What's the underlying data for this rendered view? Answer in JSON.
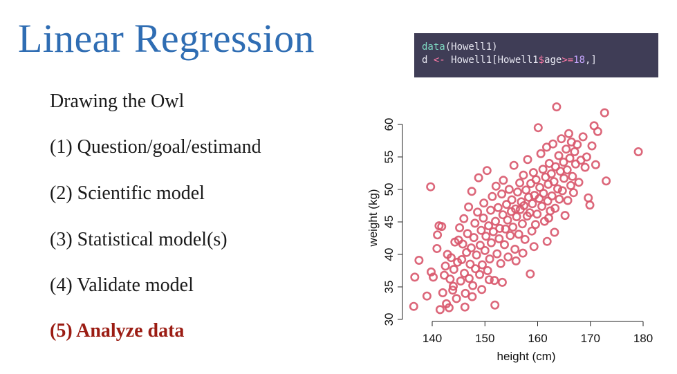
{
  "slide": {
    "title": "Linear Regression",
    "code_lines": [
      {
        "fn": "data",
        "rest": "(Howell1)"
      },
      {
        "prefix": "d ",
        "op": "<-",
        "mid": " Howell1[Howell1",
        "op2": "$",
        "mid2": "age",
        "op3": ">=",
        "num": "18",
        "tail": ",]"
      }
    ],
    "steps": [
      {
        "label": "Drawing the Owl",
        "active": false
      },
      {
        "label": "(1) Question/goal/estimand",
        "active": false
      },
      {
        "label": "(2) Scientific model",
        "active": false
      },
      {
        "label": "(3) Statistical model(s)",
        "active": false
      },
      {
        "label": "(4) Validate model",
        "active": false
      },
      {
        "label": "(5) Analyze data",
        "active": true
      }
    ]
  },
  "colors": {
    "title": "#2f6db3",
    "point": "#d8566c",
    "active_step": "#9b1c13",
    "code_bg": "#3f3d56"
  },
  "chart_data": {
    "type": "scatter",
    "title": "",
    "xlabel": "height (cm)",
    "ylabel": "weight (kg)",
    "xlim": [
      135,
      181
    ],
    "ylim": [
      29.5,
      63
    ],
    "xticks": [
      140,
      150,
      160,
      170,
      180
    ],
    "yticks": [
      30,
      35,
      40,
      45,
      50,
      55,
      60
    ],
    "grid": false,
    "legend": "none",
    "series": [
      {
        "marker": "open-circle",
        "color": "#d8566c",
        "points": [
          [
            139.7,
            50.4
          ],
          [
            136.5,
            32.0
          ],
          [
            136.7,
            36.5
          ],
          [
            137.5,
            39.1
          ],
          [
            139.0,
            33.6
          ],
          [
            139.8,
            37.3
          ],
          [
            140.2,
            36.5
          ],
          [
            140.9,
            40.9
          ],
          [
            141.0,
            43.0
          ],
          [
            141.3,
            44.4
          ],
          [
            141.5,
            31.5
          ],
          [
            141.8,
            44.3
          ],
          [
            142.0,
            34.1
          ],
          [
            142.3,
            36.8
          ],
          [
            142.5,
            38.2
          ],
          [
            142.7,
            32.4
          ],
          [
            142.9,
            40.0
          ],
          [
            143.2,
            31.8
          ],
          [
            143.4,
            36.2
          ],
          [
            143.6,
            39.5
          ],
          [
            143.9,
            34.5
          ],
          [
            144.1,
            37.7
          ],
          [
            144.3,
            41.9
          ],
          [
            144.6,
            33.2
          ],
          [
            144.8,
            38.8
          ],
          [
            145.0,
            42.2
          ],
          [
            145.2,
            44.1
          ],
          [
            145.4,
            35.9
          ],
          [
            145.6,
            39.2
          ],
          [
            145.8,
            41.6
          ],
          [
            146.0,
            45.5
          ],
          [
            146.1,
            37.1
          ],
          [
            146.3,
            34.0
          ],
          [
            146.5,
            40.3
          ],
          [
            146.7,
            43.2
          ],
          [
            146.9,
            47.3
          ],
          [
            147.0,
            36.3
          ],
          [
            147.2,
            38.5
          ],
          [
            147.4,
            41.0
          ],
          [
            147.5,
            49.7
          ],
          [
            147.7,
            35.2
          ],
          [
            147.9,
            42.6
          ],
          [
            148.1,
            44.8
          ],
          [
            148.2,
            37.8
          ],
          [
            148.4,
            39.9
          ],
          [
            148.6,
            46.5
          ],
          [
            148.8,
            51.8
          ],
          [
            149.0,
            36.9
          ],
          [
            149.1,
            41.4
          ],
          [
            149.3,
            43.7
          ],
          [
            149.5,
            38.4
          ],
          [
            149.7,
            45.6
          ],
          [
            149.8,
            47.9
          ],
          [
            150.0,
            40.6
          ],
          [
            150.2,
            42.8
          ],
          [
            150.4,
            52.9
          ],
          [
            150.5,
            37.5
          ],
          [
            150.7,
            44.4
          ],
          [
            150.9,
            39.3
          ],
          [
            151.1,
            46.8
          ],
          [
            151.2,
            41.8
          ],
          [
            151.4,
            48.9
          ],
          [
            151.6,
            43.5
          ],
          [
            151.8,
            36.0
          ],
          [
            152.0,
            45.1
          ],
          [
            152.1,
            50.5
          ],
          [
            152.3,
            40.1
          ],
          [
            152.5,
            47.2
          ],
          [
            152.7,
            42.4
          ],
          [
            152.8,
            44.0
          ],
          [
            153.0,
            38.6
          ],
          [
            153.2,
            49.3
          ],
          [
            153.4,
            46.1
          ],
          [
            153.5,
            51.4
          ],
          [
            153.7,
            41.5
          ],
          [
            153.9,
            43.9
          ],
          [
            154.1,
            47.7
          ],
          [
            154.3,
            45.3
          ],
          [
            154.4,
            39.6
          ],
          [
            154.6,
            50.0
          ],
          [
            154.8,
            42.9
          ],
          [
            155.0,
            46.6
          ],
          [
            155.1,
            48.4
          ],
          [
            155.3,
            44.2
          ],
          [
            155.5,
            53.7
          ],
          [
            155.7,
            40.8
          ],
          [
            155.8,
            47.0
          ],
          [
            156.0,
            45.8
          ],
          [
            156.2,
            49.6
          ],
          [
            156.4,
            43.1
          ],
          [
            156.6,
            51.0
          ],
          [
            156.7,
            46.9
          ],
          [
            156.9,
            48.1
          ],
          [
            157.1,
            44.7
          ],
          [
            157.3,
            52.2
          ],
          [
            157.4,
            47.5
          ],
          [
            157.6,
            42.3
          ],
          [
            157.8,
            49.9
          ],
          [
            158.0,
            45.9
          ],
          [
            158.1,
            54.6
          ],
          [
            158.3,
            48.8
          ],
          [
            158.5,
            46.4
          ],
          [
            158.7,
            50.9
          ],
          [
            158.9,
            43.6
          ],
          [
            159.0,
            47.8
          ],
          [
            159.2,
            52.6
          ],
          [
            159.4,
            49.1
          ],
          [
            159.6,
            44.6
          ],
          [
            159.7,
            51.5
          ],
          [
            159.9,
            46.2
          ],
          [
            160.1,
            59.5
          ],
          [
            160.3,
            48.6
          ],
          [
            160.4,
            50.3
          ],
          [
            160.6,
            55.5
          ],
          [
            160.8,
            47.4
          ],
          [
            161.0,
            53.1
          ],
          [
            161.1,
            49.4
          ],
          [
            161.3,
            45.1
          ],
          [
            161.5,
            51.9
          ],
          [
            161.7,
            56.5
          ],
          [
            161.9,
            48.2
          ],
          [
            162.0,
            50.8
          ],
          [
            162.2,
            54.0
          ],
          [
            162.4,
            46.7
          ],
          [
            162.6,
            52.4
          ],
          [
            162.7,
            49.0
          ],
          [
            162.9,
            57.0
          ],
          [
            163.1,
            51.2
          ],
          [
            163.3,
            47.1
          ],
          [
            163.4,
            53.5
          ],
          [
            163.6,
            62.7
          ],
          [
            163.8,
            50.1
          ],
          [
            164.0,
            55.2
          ],
          [
            164.1,
            48.5
          ],
          [
            164.3,
            52.8
          ],
          [
            164.5,
            57.8
          ],
          [
            164.7,
            49.8
          ],
          [
            164.9,
            54.2
          ],
          [
            165.0,
            51.7
          ],
          [
            165.2,
            46.0
          ],
          [
            165.4,
            56.2
          ],
          [
            165.6,
            53.0
          ],
          [
            165.7,
            48.3
          ],
          [
            165.9,
            58.6
          ],
          [
            166.1,
            54.8
          ],
          [
            166.3,
            50.6
          ],
          [
            166.4,
            57.3
          ],
          [
            166.6,
            52.0
          ],
          [
            166.8,
            49.5
          ],
          [
            167.0,
            55.8
          ],
          [
            167.2,
            53.9
          ],
          [
            167.5,
            56.9
          ],
          [
            167.8,
            51.1
          ],
          [
            168.2,
            54.5
          ],
          [
            168.6,
            58.1
          ],
          [
            169.0,
            53.4
          ],
          [
            169.3,
            55.0
          ],
          [
            169.6,
            48.7
          ],
          [
            169.9,
            47.6
          ],
          [
            170.3,
            56.7
          ],
          [
            170.7,
            59.8
          ],
          [
            171.0,
            53.8
          ],
          [
            171.4,
            58.9
          ],
          [
            172.7,
            61.8
          ],
          [
            173.0,
            51.3
          ],
          [
            179.1,
            55.8
          ],
          [
            144.0,
            35.1
          ],
          [
            147.6,
            33.5
          ],
          [
            151.9,
            32.2
          ],
          [
            153.3,
            35.7
          ],
          [
            149.4,
            34.6
          ],
          [
            146.2,
            31.9
          ],
          [
            155.9,
            39.0
          ],
          [
            158.6,
            37.0
          ],
          [
            150.8,
            36.1
          ],
          [
            161.8,
            42.0
          ],
          [
            163.2,
            43.4
          ],
          [
            157.2,
            40.2
          ],
          [
            159.3,
            41.2
          ],
          [
            162.1,
            45.6
          ]
        ]
      }
    ]
  }
}
